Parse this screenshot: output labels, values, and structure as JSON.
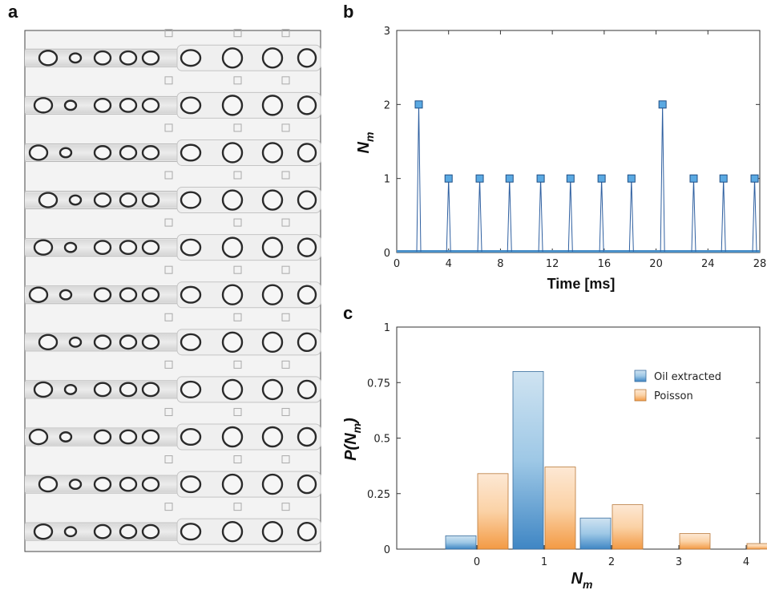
{
  "panels": {
    "a": "a",
    "b": "b",
    "c": "c"
  },
  "chart_data": [
    {
      "panel": "b",
      "type": "line",
      "xlabel": "Time [ms]",
      "ylabel": "N",
      "ylabel_sub": "m",
      "xlim": [
        0,
        28
      ],
      "ylim": [
        0,
        3
      ],
      "xticks": [
        0,
        4,
        8,
        12,
        16,
        20,
        24,
        28
      ],
      "yticks": [
        0,
        1,
        2,
        3
      ],
      "series": [
        {
          "x": [
            1.7,
            4.0,
            6.4,
            8.7,
            11.1,
            13.4,
            15.8,
            18.1,
            20.5,
            22.9,
            25.2,
            27.6
          ],
          "y": [
            2,
            1,
            1,
            1,
            1,
            1,
            1,
            1,
            2,
            1,
            1,
            1
          ]
        }
      ],
      "colors": {
        "line": "#2e5fa0",
        "marker": "#5aa9e2",
        "baseline": "#4a90c8"
      }
    },
    {
      "panel": "c",
      "type": "bar",
      "xlabel": "N",
      "xlabel_sub": "m",
      "ylabel": "P(N",
      "ylabel_sub": "m",
      "ylabel_close": ")",
      "categories": [
        "0",
        "1",
        "2",
        "3",
        "4"
      ],
      "ylim": [
        0,
        1
      ],
      "yticks": [
        "0",
        "0.25",
        "0.5",
        "0.75",
        "1"
      ],
      "legend_position": "top-right",
      "series": [
        {
          "name": "Oil extracted",
          "values": [
            0.06,
            0.8,
            0.14,
            0,
            0
          ],
          "color": "#5b9bd0"
        },
        {
          "name": "Poisson",
          "values": [
            0.34,
            0.37,
            0.2,
            0.07,
            0.025
          ],
          "color": "#f5a55a"
        }
      ]
    }
  ]
}
